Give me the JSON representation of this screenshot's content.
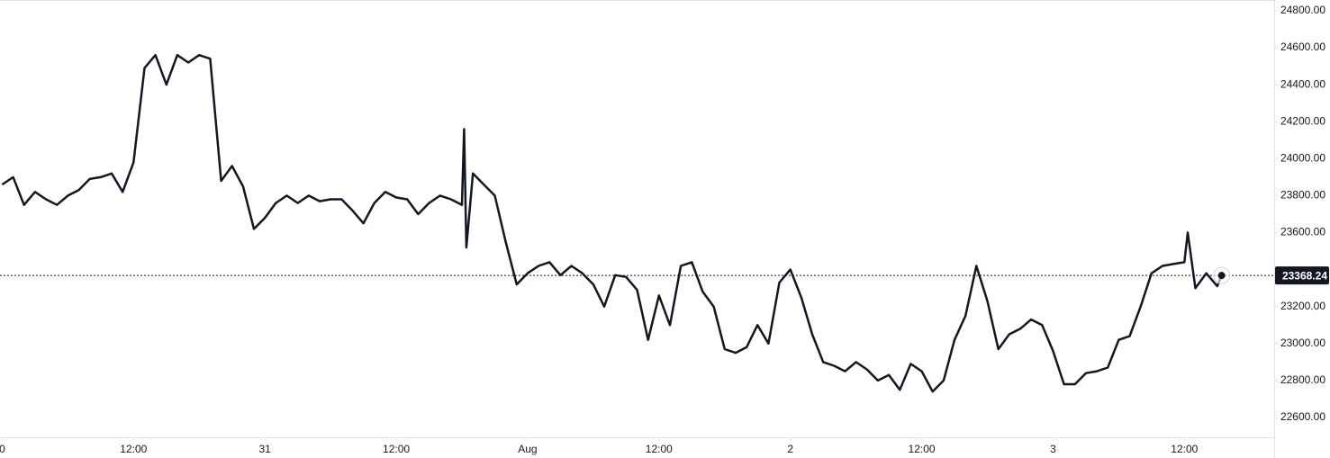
{
  "chart_data": {
    "type": "line",
    "color": "#131722",
    "x": [
      0,
      1,
      2,
      3,
      4,
      5,
      6,
      7,
      8,
      9,
      10,
      11,
      12,
      13,
      14,
      15,
      16,
      17,
      18,
      19,
      20,
      21,
      22,
      23,
      24,
      25,
      26,
      27,
      28,
      29,
      30,
      31,
      32,
      33,
      34,
      35,
      36,
      37,
      38,
      39,
      40,
      41,
      42,
      42.2,
      42.4,
      43,
      44,
      45,
      46,
      47,
      48,
      49,
      50,
      51,
      52,
      53,
      54,
      55,
      56,
      57,
      58,
      59,
      60,
      61,
      62,
      63,
      64,
      65,
      66,
      67,
      68,
      69,
      70,
      71,
      72,
      73,
      74,
      75,
      76,
      77,
      78,
      79,
      80,
      81,
      82,
      83,
      84,
      85,
      86,
      87,
      88,
      89,
      90,
      91,
      92,
      93,
      94,
      95,
      96,
      97,
      98,
      99,
      100,
      101,
      102,
      103,
      104,
      105,
      106,
      107,
      108,
      108.3,
      109,
      110,
      111,
      111.4
    ],
    "values": [
      23860,
      23900,
      23750,
      23820,
      23780,
      23750,
      23800,
      23830,
      23890,
      23900,
      23920,
      23820,
      23980,
      24490,
      24560,
      24400,
      24560,
      24520,
      24560,
      24540,
      23880,
      23960,
      23850,
      23620,
      23680,
      23760,
      23800,
      23760,
      23800,
      23770,
      23780,
      23780,
      23720,
      23650,
      23760,
      23820,
      23790,
      23780,
      23700,
      23760,
      23800,
      23780,
      23750,
      24160,
      23520,
      23920,
      23860,
      23800,
      23550,
      23320,
      23380,
      23420,
      23440,
      23370,
      23420,
      23380,
      23320,
      23200,
      23370,
      23360,
      23290,
      23020,
      23260,
      23100,
      23420,
      23440,
      23280,
      23200,
      22970,
      22950,
      22980,
      23100,
      23000,
      23330,
      23400,
      23250,
      23050,
      22900,
      22880,
      22850,
      22900,
      22860,
      22800,
      22830,
      22750,
      22890,
      22850,
      22740,
      22800,
      23020,
      23150,
      23420,
      23230,
      22970,
      23050,
      23080,
      23130,
      23100,
      22960,
      22780,
      22780,
      22840,
      22850,
      22870,
      23020,
      23040,
      23200,
      23380,
      23420,
      23430,
      23440,
      23600,
      23300,
      23380,
      23310,
      23368.24
    ],
    "last_price": 23368.24,
    "xlim": [
      -0.2,
      116.2
    ],
    "ylim": [
      22493,
      24858
    ],
    "xticks": [
      {
        "value": 0,
        "label": "0"
      },
      {
        "value": 12,
        "label": "12:00"
      },
      {
        "value": 24,
        "label": "31"
      },
      {
        "value": 36,
        "label": "12:00"
      },
      {
        "value": 48,
        "label": "Aug"
      },
      {
        "value": 60,
        "label": "12:00"
      },
      {
        "value": 72,
        "label": "2"
      },
      {
        "value": 84,
        "label": "12:00"
      },
      {
        "value": 96,
        "label": "3"
      },
      {
        "value": 108,
        "label": "12:00"
      }
    ],
    "yticks": [
      {
        "value": 22600,
        "label": "22600.00"
      },
      {
        "value": 22800,
        "label": "22800.00"
      },
      {
        "value": 23000,
        "label": "23000.00"
      },
      {
        "value": 23200,
        "label": "23200.00"
      },
      {
        "value": 23600,
        "label": "23600.00"
      },
      {
        "value": 23800,
        "label": "23800.00"
      },
      {
        "value": 24000,
        "label": "24000.00"
      },
      {
        "value": 24200,
        "label": "24200.00"
      },
      {
        "value": 24400,
        "label": "24400.00"
      },
      {
        "value": 24600,
        "label": "24600.00"
      },
      {
        "value": 24800,
        "label": "24800.00"
      }
    ]
  }
}
